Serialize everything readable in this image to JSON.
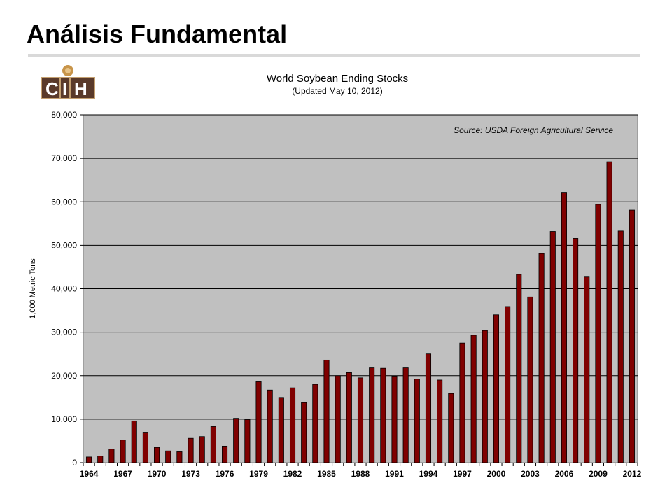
{
  "slide": {
    "title": "Análisis Fundamental"
  },
  "logo": {
    "text": "CIH"
  },
  "chart_data": {
    "type": "bar",
    "title": "World Soybean Ending Stocks",
    "subtitle": "(Updated May 10, 2012)",
    "annotation": "Source: USDA Foreign Agricultural Service",
    "xlabel": "",
    "ylabel": "1,000 Metric Tons",
    "ylim": [
      0,
      80000
    ],
    "y_ticks": [
      "0",
      "10,000",
      "20,000",
      "30,000",
      "40,000",
      "50,000",
      "60,000",
      "70,000",
      "80,000"
    ],
    "x_tick_labels": [
      "1964",
      "1967",
      "1970",
      "1973",
      "1976",
      "1979",
      "1982",
      "1985",
      "1988",
      "1991",
      "1994",
      "1997",
      "2000",
      "2003",
      "2006",
      "2009",
      "2012"
    ],
    "grid": "horizontal",
    "bar_color": "#800000",
    "plot_background": "#c0c0c0",
    "categories": [
      "1964",
      "1965",
      "1966",
      "1967",
      "1968",
      "1969",
      "1970",
      "1971",
      "1972",
      "1973",
      "1974",
      "1975",
      "1976",
      "1977",
      "1978",
      "1979",
      "1980",
      "1981",
      "1982",
      "1983",
      "1984",
      "1985",
      "1986",
      "1987",
      "1988",
      "1989",
      "1990",
      "1991",
      "1992",
      "1993",
      "1994",
      "1995",
      "1996",
      "1997",
      "1998",
      "1999",
      "2000",
      "2001",
      "2002",
      "2003",
      "2004",
      "2005",
      "2006",
      "2007",
      "2008",
      "2009",
      "2010",
      "2011",
      "2012"
    ],
    "values": [
      1300,
      1500,
      3100,
      5200,
      9600,
      7000,
      3500,
      2700,
      2500,
      5600,
      6000,
      8300,
      3800,
      10200,
      9900,
      18600,
      16700,
      15000,
      17200,
      13800,
      18000,
      23600,
      20000,
      20700,
      19500,
      21800,
      21700,
      19900,
      21800,
      19200,
      25000,
      19000,
      15900,
      27500,
      29300,
      30400,
      34000,
      35900,
      43300,
      38100,
      48100,
      53200,
      62200,
      51600,
      42700,
      59400,
      69200,
      53300,
      58100
    ]
  }
}
